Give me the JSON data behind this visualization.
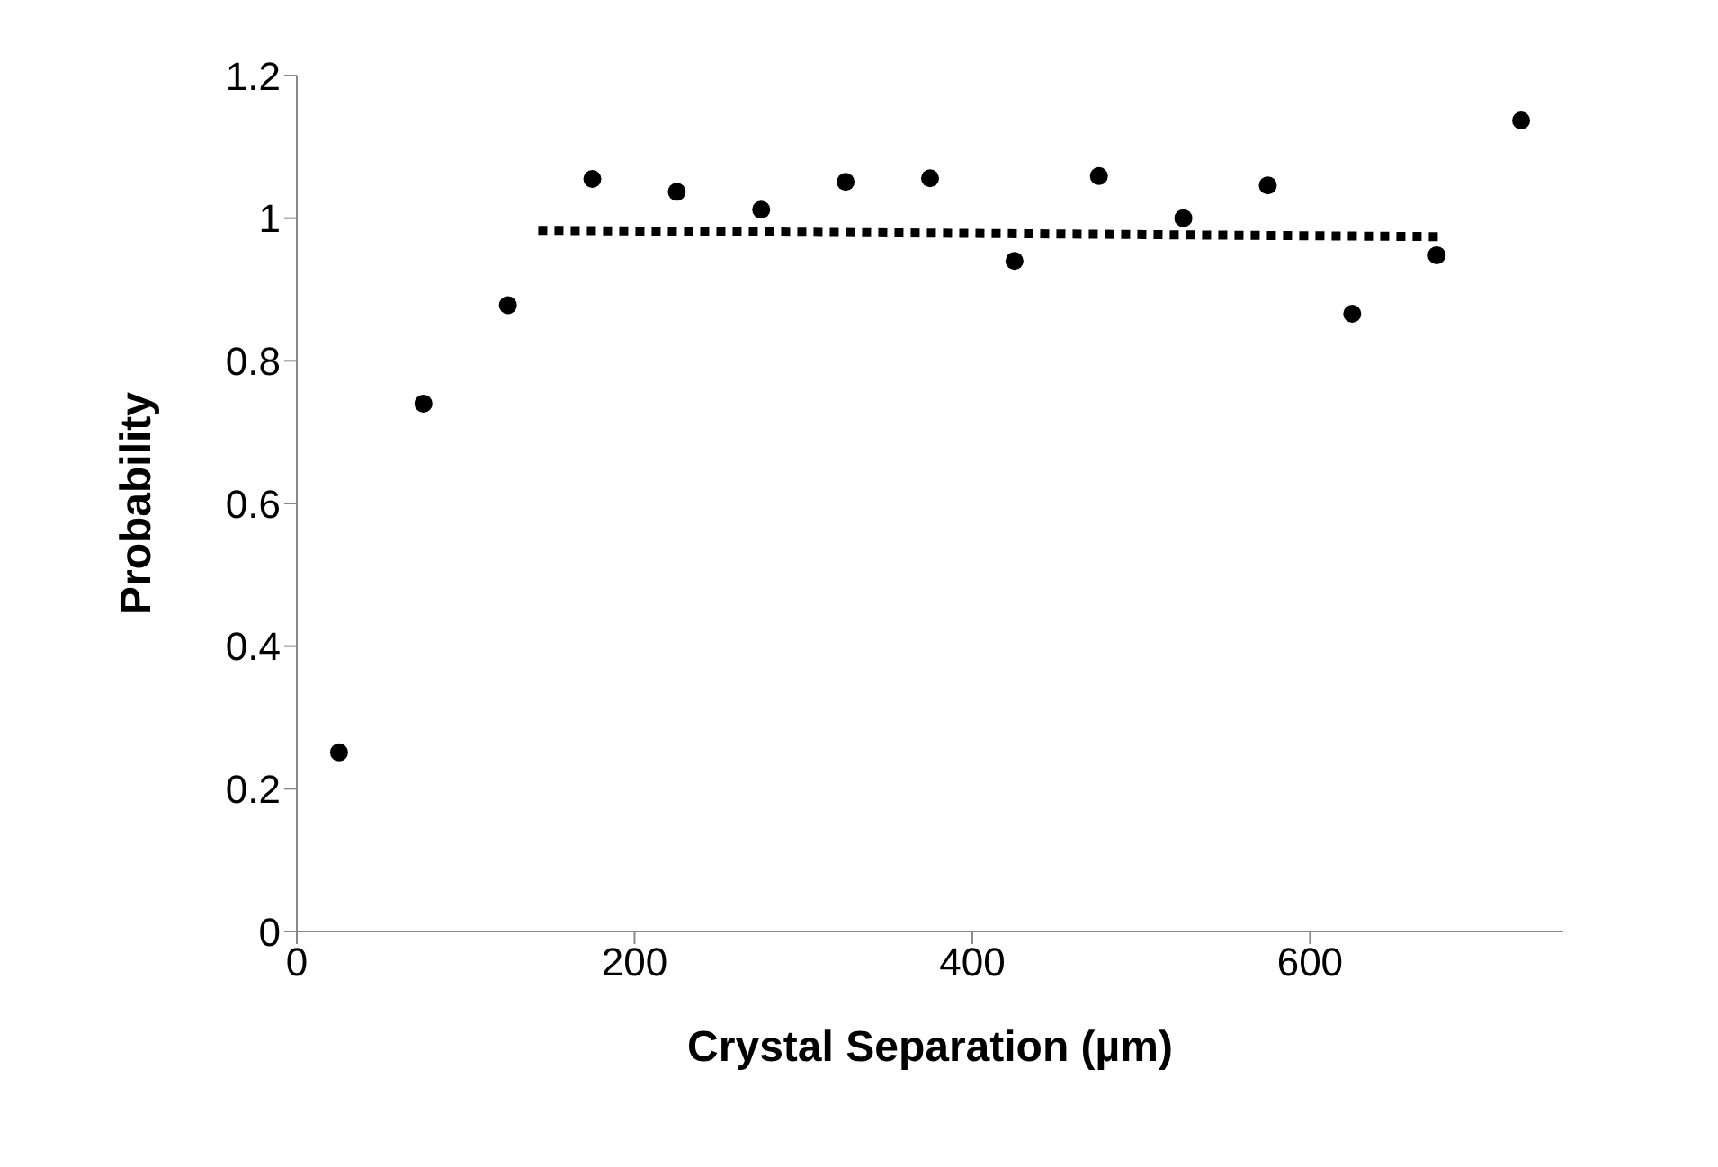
{
  "chart_data": {
    "type": "scatter",
    "xlabel": "Crystal Separation (µm)",
    "ylabel": "Probability",
    "xlim": [
      0,
      750
    ],
    "xticks": [
      0,
      200,
      400,
      600
    ],
    "ylim": [
      0,
      1.2
    ],
    "yticks": [
      0,
      0.2,
      0.4,
      0.6,
      0.8,
      1,
      1.2
    ],
    "grid": false,
    "legend": false,
    "marker": "circle",
    "series": [
      {
        "color": "#000000",
        "x": [
          25,
          75,
          125,
          175,
          225,
          275,
          325,
          375,
          425,
          475,
          525,
          575,
          625,
          675,
          725
        ],
        "values": [
          0.251,
          0.74,
          0.878,
          1.055,
          1.037,
          1.012,
          1.051,
          1.056,
          0.94,
          1.059,
          1.0,
          1.046,
          0.866,
          0.948,
          1.137
        ]
      },
      {
        "type": "line",
        "color": "#000000",
        "line_style": "dotted",
        "marker": "none",
        "x": [
          143,
          680
        ],
        "values": [
          0.983,
          0.974
        ]
      }
    ]
  }
}
